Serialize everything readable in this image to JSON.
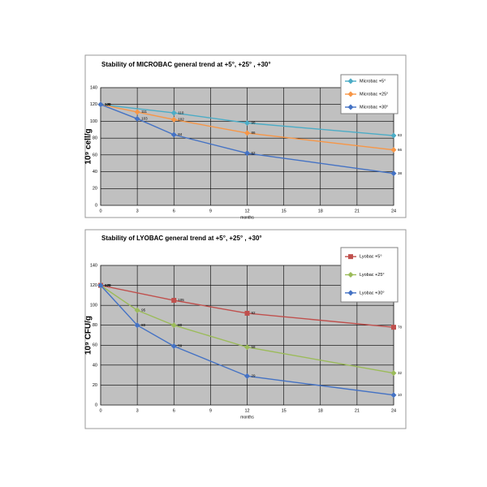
{
  "chart_data": [
    {
      "type": "line",
      "title": "Stability of MICROBAC general trend at  +5°, +25° , +30°",
      "ylabel": "10⁹ cell/g",
      "xlabel": "months",
      "xlim": [
        0,
        24
      ],
      "xticks": [
        0,
        3,
        6,
        9,
        12,
        15,
        18,
        21,
        24
      ],
      "ylim": [
        0,
        140
      ],
      "yticks": [
        0,
        20,
        40,
        60,
        80,
        100,
        120,
        140
      ],
      "grid": true,
      "legend": "top-right",
      "series": [
        {
          "name": "Microbac +5°",
          "color": "#4bacc6",
          "marker": "diamond",
          "x": [
            0,
            6,
            12,
            24
          ],
          "values": [
            120,
            110,
            98,
            83
          ]
        },
        {
          "name": "Microbac +25°",
          "color": "#f79646",
          "marker": "diamond",
          "x": [
            0,
            3,
            6,
            12,
            24
          ],
          "values": [
            120,
            111,
            102,
            86,
            66
          ]
        },
        {
          "name": "Microbac +30°",
          "color": "#4472c4",
          "marker": "diamond",
          "x": [
            0,
            3,
            6,
            12,
            24
          ],
          "values": [
            120,
            103,
            84,
            62,
            38
          ]
        }
      ]
    },
    {
      "type": "line",
      "title": "Stability of LYOBAC general trend at +5°, +25° , +30°",
      "ylabel": "10⁹ CFU/g",
      "xlabel": "months",
      "xlim": [
        0,
        24
      ],
      "xticks": [
        0,
        3,
        6,
        9,
        12,
        15,
        18,
        21,
        24
      ],
      "ylim": [
        0,
        140
      ],
      "yticks": [
        0,
        20,
        40,
        60,
        80,
        100,
        120,
        140
      ],
      "grid": true,
      "legend": "top-right",
      "series": [
        {
          "name": "Lyobac +5°",
          "color": "#c0504d",
          "marker": "square",
          "x": [
            0,
            6,
            12,
            24
          ],
          "values": [
            120,
            105,
            92,
            78
          ]
        },
        {
          "name": "Lyobac +25°",
          "color": "#9bbb59",
          "marker": "diamond",
          "x": [
            0,
            3,
            6,
            12,
            24
          ],
          "values": [
            120,
            95,
            80,
            58,
            32
          ]
        },
        {
          "name": "Lyobac +30°",
          "color": "#4472c4",
          "marker": "diamond",
          "x": [
            0,
            3,
            6,
            12,
            24
          ],
          "values": [
            120,
            80,
            59,
            29,
            10
          ]
        }
      ]
    }
  ]
}
